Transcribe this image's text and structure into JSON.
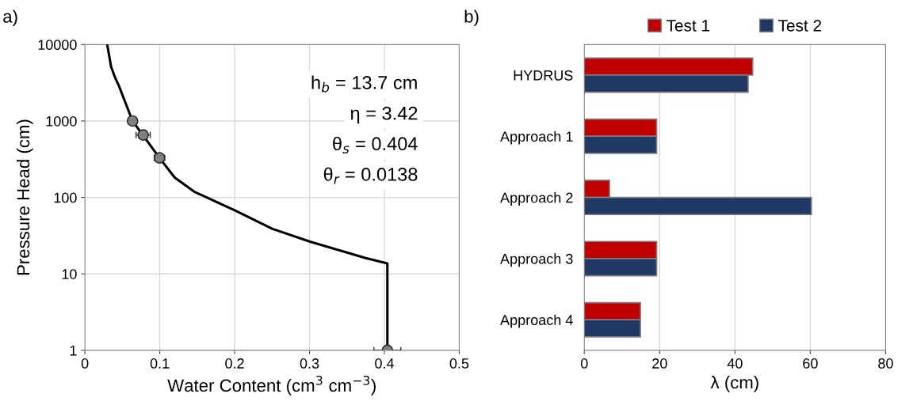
{
  "chart_data": [
    {
      "type": "line",
      "title": "a)",
      "xlabel": "Water Content (cm$^{3}$ cm$^{−3}$)",
      "ylabel": "Pressure Head (cm)",
      "log": "y",
      "xlim": [
        0,
        0.5
      ],
      "xticks": [
        0,
        0.1,
        0.2,
        0.3,
        0.4,
        0.5
      ],
      "ylim": [
        1,
        10000
      ],
      "yticks": [
        1,
        10,
        100,
        1000,
        10000
      ],
      "grid": true,
      "series": [
        {
          "type": "line",
          "color": "#000000",
          "marker": "none",
          "line_style": "solid",
          "x": [
            0.0298,
            0.035,
            0.0407,
            0.045,
            0.0636,
            0.0996,
            0.12,
            0.146,
            0.2007,
            0.25,
            0.3007,
            0.35,
            0.375,
            0.404,
            0.404
          ],
          "values": [
            10000,
            5100,
            3624,
            2950,
            1000,
            329,
            182,
            119,
            67.3,
            39,
            26.4,
            19,
            16.1,
            13.7,
            1
          ]
        },
        {
          "type": "scatter",
          "color": "#808080",
          "marker": "circle",
          "x": [
            0.0636,
            0.0778,
            0.0996,
            0.404
          ],
          "values": [
            1000,
            656,
            329,
            1
          ],
          "xerrors": [
            null,
            0.0095,
            0.007,
            0.018
          ]
        }
      ],
      "annotations": [
        "h$_{b}$ = 13.7 cm",
        "η = 3.42",
        "θ$_{s}$ = 0.404",
        "θ$_{r}$ = 0.0138"
      ]
    },
    {
      "type": "bar",
      "orientation": "horizontal",
      "title": "b)",
      "xlabel": "λ (cm)",
      "xlim": [
        0,
        80
      ],
      "xticks": [
        0,
        20,
        40,
        60,
        80
      ],
      "grid": "x",
      "legend": "top",
      "categories": [
        "HYDRUS",
        "Approach 1",
        "Approach 2",
        "Approach 3",
        "Approach 4"
      ],
      "series": [
        {
          "name": "Test 1",
          "color": "#c00000",
          "values": [
            44.7,
            19.2,
            6.7,
            19.2,
            14.9
          ]
        },
        {
          "name": "Test 2",
          "color": "#203864",
          "values": [
            43.5,
            19.2,
            60.3,
            19.2,
            14.9
          ]
        }
      ]
    }
  ]
}
